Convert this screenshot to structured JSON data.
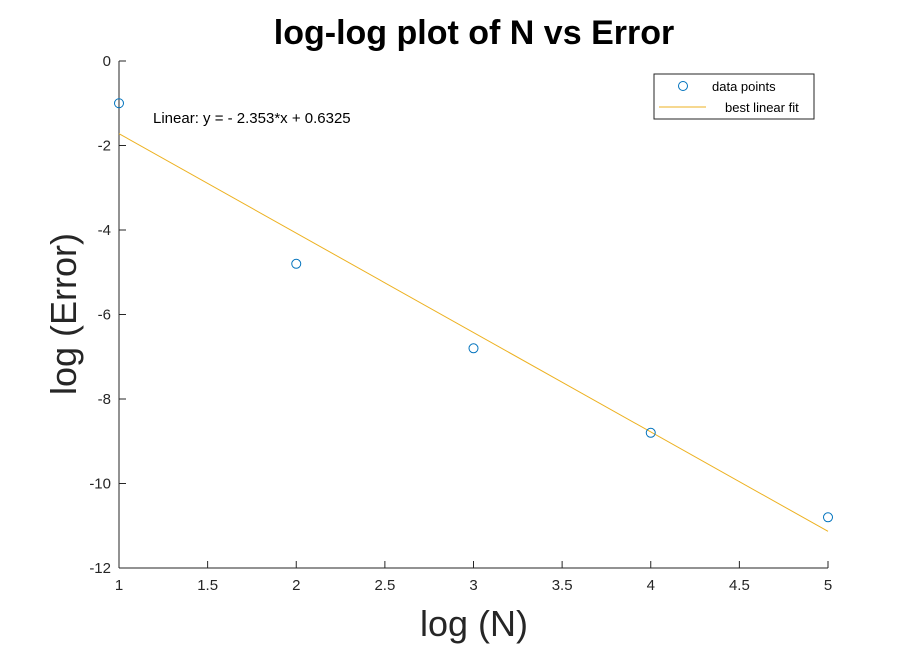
{
  "chart_data": {
    "type": "scatter",
    "title": "log-log plot of N vs Error",
    "xlabel": "log (N)",
    "ylabel": "log (Error)",
    "xlim": [
      1,
      5
    ],
    "ylim": [
      -12,
      0
    ],
    "xticks": [
      1,
      1.5,
      2,
      2.5,
      3,
      3.5,
      4,
      4.5,
      5
    ],
    "xtick_labels": [
      "1",
      "1.5",
      "2",
      "2.5",
      "3",
      "3.5",
      "4",
      "4.5",
      "5"
    ],
    "yticks": [
      0,
      -2,
      -4,
      -6,
      -8,
      -10,
      -12
    ],
    "ytick_labels": [
      "0",
      "-2",
      "-4",
      "-6",
      "-8",
      "-10",
      "-12"
    ],
    "grid": false,
    "legend_position": "top-right",
    "series": [
      {
        "name": "data points",
        "kind": "scatter",
        "marker": "circle",
        "color": "#0072BD",
        "x": [
          1,
          2,
          3,
          4,
          5
        ],
        "y": [
          -1.0,
          -4.8,
          -6.8,
          -8.8,
          -10.8
        ]
      },
      {
        "name": "best linear fit",
        "kind": "line",
        "color": "#EDB120",
        "slope": -2.353,
        "intercept": 0.6325,
        "x": [
          1,
          5
        ],
        "y": [
          -1.7205,
          -11.1325
        ]
      }
    ],
    "annotation": "Linear:  y = - 2.353*x + 0.6325"
  }
}
